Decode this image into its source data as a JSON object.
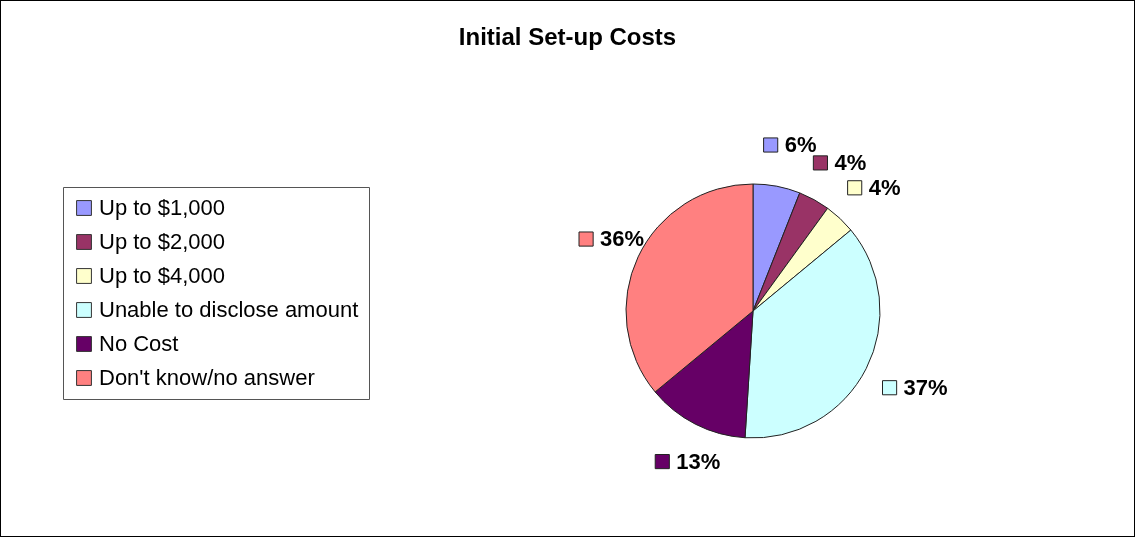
{
  "chart_data": {
    "type": "pie",
    "title": "Initial Set-up Costs",
    "categories": [
      "Up to $1,000",
      "Up to $2,000",
      "Up to $4,000",
      "Unable to disclose amount",
      "No Cost",
      "Don't know/no answer"
    ],
    "values": [
      6,
      4,
      4,
      37,
      13,
      36
    ],
    "colors": [
      "#9999ff",
      "#993366",
      "#ffffcc",
      "#ccffff",
      "#660066",
      "#ff8080"
    ],
    "value_labels": [
      "6%",
      "4%",
      "4%",
      "37%",
      "13%",
      "36%"
    ],
    "legend": "left"
  }
}
